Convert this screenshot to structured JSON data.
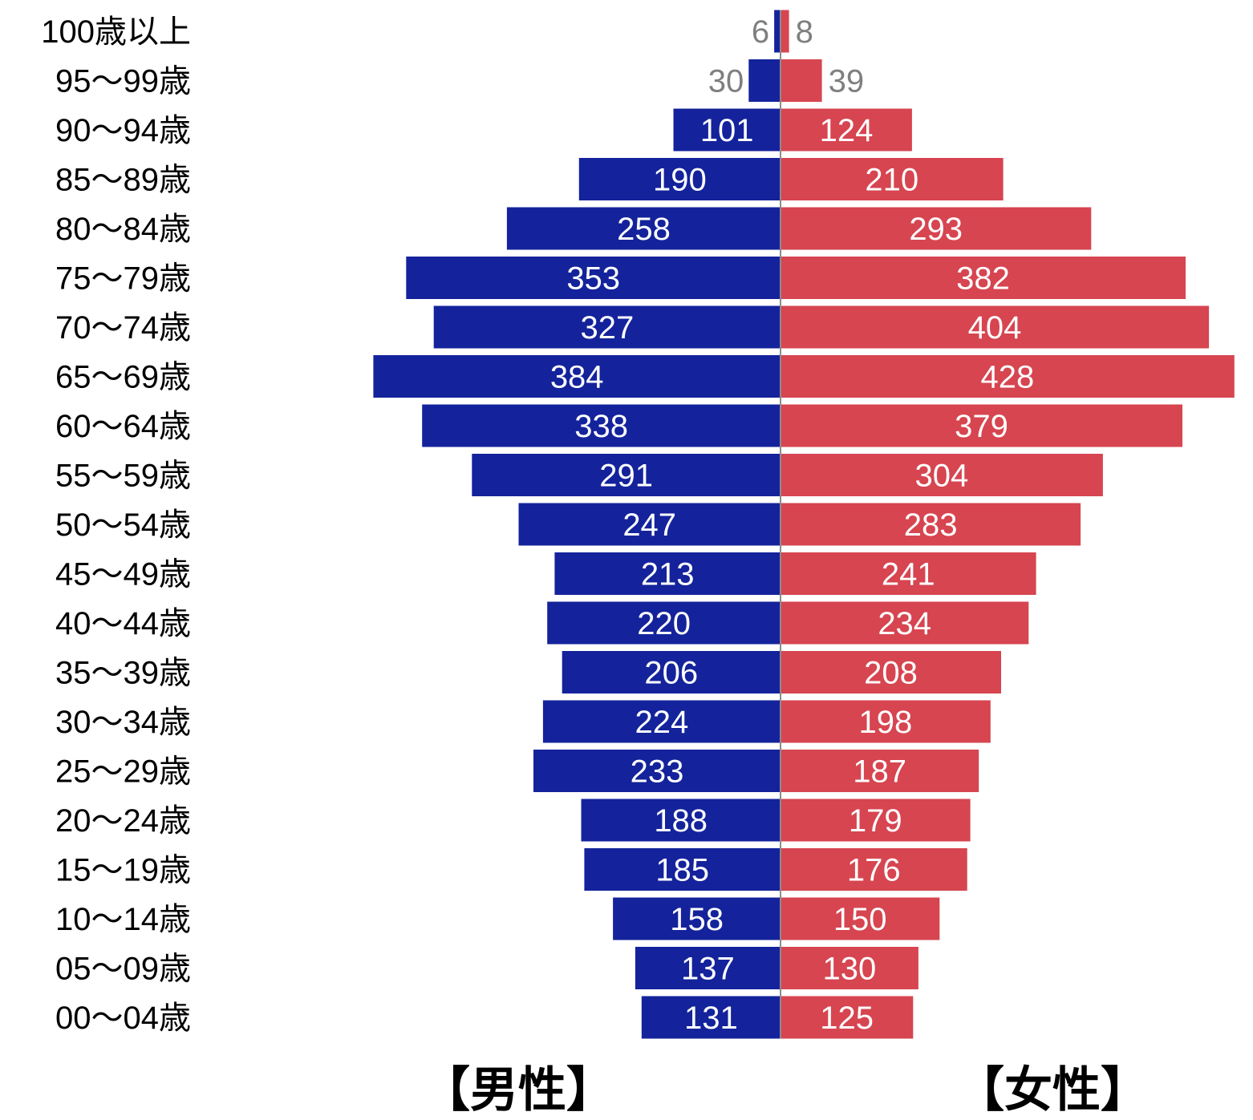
{
  "chart_data": {
    "type": "bar",
    "orientation": "horizontal",
    "layout": "population-pyramid",
    "categories": [
      "100歳以上",
      "95～99歳",
      "90～94歳",
      "85～89歳",
      "80～84歳",
      "75～79歳",
      "70～74歳",
      "65～69歳",
      "60～64歳",
      "55～59歳",
      "50～54歳",
      "45～49歳",
      "40～44歳",
      "35～39歳",
      "30～34歳",
      "25～29歳",
      "20～24歳",
      "15～19歳",
      "10～14歳",
      "05～09歳",
      "00～04歳"
    ],
    "series": [
      {
        "name": "【男性】",
        "side": "left",
        "color": "#14239b",
        "values": [
          6,
          30,
          101,
          190,
          258,
          353,
          327,
          384,
          338,
          291,
          247,
          213,
          220,
          206,
          224,
          233,
          188,
          185,
          158,
          137,
          131
        ]
      },
      {
        "name": "【女性】",
        "side": "right",
        "color": "#d64550",
        "values": [
          8,
          39,
          124,
          210,
          293,
          382,
          404,
          428,
          379,
          304,
          283,
          241,
          234,
          208,
          198,
          187,
          179,
          176,
          150,
          130,
          125
        ]
      }
    ],
    "xlim": [
      0,
      428
    ],
    "grid": false,
    "legend": "bottom",
    "colors": {
      "label_inside": "#ffffff",
      "label_outside": "#7f7f7f",
      "center_line": "#8c8c8c",
      "text": "#000000"
    }
  }
}
